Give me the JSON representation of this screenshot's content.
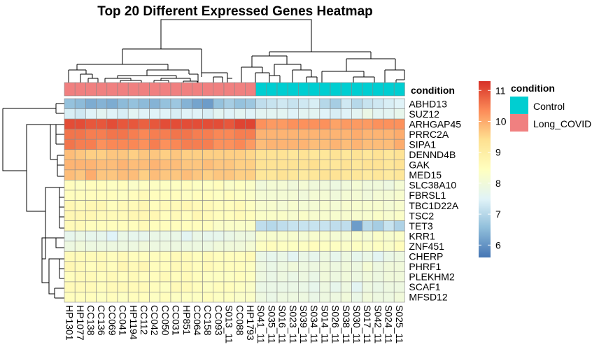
{
  "chart_data": {
    "type": "heatmap",
    "title": "Top 20 Different Expressed Genes Heatmap",
    "rows": [
      "ABHD13",
      "SUZ12",
      "ARHGAP45",
      "PRRC2A",
      "SIPA1",
      "DENND4B",
      "GAK",
      "MED15",
      "SLC38A10",
      "FBRSL1",
      "TBC1D22A",
      "TSC2",
      "TET3",
      "KRR1",
      "ZNF451",
      "CHERP",
      "PHRF1",
      "PLEKHM2",
      "SCAF1",
      "MFSD12"
    ],
    "columns": [
      "HP1301",
      "HP1077",
      "CC138",
      "CC136",
      "CC069",
      "CC041",
      "HP1194",
      "CC112",
      "CC042",
      "CC050",
      "CC031",
      "HP851",
      "CC064",
      "CC158",
      "CC093",
      "S013_11",
      "CC088",
      "HP1793",
      "S041_11",
      "S035_11",
      "S016_11",
      "S023_11",
      "S039_11",
      "S034_11",
      "S014_11",
      "S026_11",
      "S038_11",
      "S030_11",
      "S017_11",
      "S042_11",
      "S024_11",
      "S025_11"
    ],
    "annotation_name": "condition",
    "annotation": [
      "Long_COVID",
      "Long_COVID",
      "Long_COVID",
      "Long_COVID",
      "Long_COVID",
      "Long_COVID",
      "Long_COVID",
      "Long_COVID",
      "Long_COVID",
      "Long_COVID",
      "Long_COVID",
      "Long_COVID",
      "Long_COVID",
      "Long_COVID",
      "Long_COVID",
      "Long_COVID",
      "Long_COVID",
      "Long_COVID",
      "Control",
      "Control",
      "Control",
      "Control",
      "Control",
      "Control",
      "Control",
      "Control",
      "Control",
      "Control",
      "Control",
      "Control",
      "Control",
      "Control"
    ],
    "annotation_colors": {
      "Control": "#00CED1",
      "Long_COVID": "#F08080"
    },
    "legend_title": "condition",
    "legend_entries": [
      "Control",
      "Long_COVID"
    ],
    "colorbar_ticks": [
      6,
      7,
      8,
      9,
      10,
      11
    ],
    "colorbar_range": [
      5.6,
      11.3
    ],
    "colors": [
      "#4575B4",
      "#91BFDB",
      "#E0F3F8",
      "#FFFFBF",
      "#FEE090",
      "#FC8D59",
      "#D73027"
    ],
    "values": [
      [
        6.6,
        6.5,
        6.3,
        6.4,
        6.3,
        6.5,
        6.6,
        6.5,
        6.4,
        6.6,
        6.7,
        6.4,
        6.2,
        6.1,
        6.6,
        6.8,
        6.6,
        6.7,
        7.1,
        7.2,
        7.3,
        7.2,
        7.3,
        7.4,
        7.0,
        6.8,
        7.3,
        7.0,
        7.2,
        7.3,
        7.4,
        7.5
      ],
      [
        7.4,
        7.3,
        7.5,
        7.6,
        7.5,
        7.4,
        7.6,
        7.5,
        7.5,
        7.5,
        7.4,
        7.5,
        7.5,
        7.4,
        7.6,
        7.5,
        7.6,
        7.5,
        7.6,
        7.6,
        7.6,
        7.5,
        7.6,
        7.6,
        7.5,
        7.4,
        7.5,
        7.6,
        7.8,
        7.6,
        7.6,
        7.7
      ],
      [
        11.0,
        11.0,
        10.9,
        10.9,
        11.0,
        10.9,
        10.9,
        10.8,
        10.9,
        11.0,
        11.0,
        11.0,
        11.0,
        11.0,
        11.0,
        10.9,
        11.1,
        11.1,
        10.3,
        10.2,
        10.2,
        10.3,
        10.3,
        10.3,
        10.3,
        10.1,
        10.2,
        10.2,
        10.2,
        10.3,
        10.3,
        10.3
      ],
      [
        10.6,
        10.6,
        10.5,
        10.5,
        10.6,
        10.6,
        10.5,
        10.4,
        10.5,
        10.5,
        10.6,
        10.6,
        10.5,
        10.5,
        10.4,
        10.4,
        10.5,
        10.5,
        9.9,
        9.9,
        9.9,
        9.9,
        9.9,
        9.9,
        9.9,
        9.9,
        9.9,
        10.0,
        9.9,
        9.9,
        9.9,
        10.0
      ],
      [
        10.6,
        10.5,
        10.5,
        10.3,
        10.4,
        10.4,
        10.4,
        10.3,
        10.5,
        10.3,
        10.4,
        10.5,
        10.5,
        10.5,
        10.3,
        10.3,
        10.4,
        10.2,
        9.8,
        9.9,
        9.9,
        9.9,
        9.9,
        9.8,
        9.8,
        9.9,
        9.8,
        9.9,
        9.8,
        9.8,
        9.8,
        10.0
      ],
      [
        9.8,
        9.7,
        9.6,
        9.6,
        9.7,
        9.7,
        9.6,
        9.7,
        9.7,
        9.6,
        9.7,
        9.6,
        9.6,
        9.6,
        9.6,
        9.6,
        9.6,
        9.5,
        9.3,
        9.3,
        9.3,
        9.2,
        9.3,
        9.2,
        9.2,
        9.3,
        9.2,
        9.3,
        9.2,
        9.3,
        9.2,
        9.3
      ],
      [
        9.9,
        9.9,
        9.9,
        9.8,
        9.8,
        9.9,
        9.8,
        9.8,
        9.9,
        9.8,
        9.8,
        9.7,
        9.7,
        9.8,
        9.7,
        9.7,
        9.6,
        9.6,
        9.3,
        9.3,
        9.3,
        9.3,
        9.3,
        9.4,
        9.2,
        9.2,
        9.3,
        9.2,
        9.3,
        9.3,
        9.2,
        9.3
      ],
      [
        9.8,
        9.7,
        10.0,
        9.7,
        9.7,
        9.8,
        9.8,
        9.6,
        9.8,
        9.7,
        9.7,
        9.8,
        9.7,
        9.6,
        9.7,
        9.7,
        9.6,
        9.6,
        9.2,
        9.2,
        9.3,
        9.2,
        9.1,
        9.2,
        9.3,
        9.3,
        9.2,
        9.2,
        9.1,
        9.2,
        9.1,
        9.2
      ],
      [
        8.5,
        8.4,
        8.5,
        8.5,
        8.4,
        8.5,
        8.3,
        8.4,
        8.4,
        8.4,
        8.4,
        8.5,
        8.4,
        8.4,
        8.5,
        8.3,
        8.4,
        8.3,
        8.0,
        8.1,
        8.1,
        8.0,
        8.1,
        8.0,
        8.0,
        7.9,
        8.0,
        8.1,
        8.0,
        8.0,
        7.9,
        8.1
      ],
      [
        8.5,
        8.5,
        8.5,
        8.5,
        8.5,
        8.4,
        8.5,
        8.6,
        8.5,
        8.5,
        8.5,
        8.4,
        8.5,
        8.5,
        8.4,
        8.5,
        8.4,
        8.3,
        8.1,
        8.1,
        8.1,
        8.1,
        8.0,
        8.1,
        8.1,
        8.0,
        8.1,
        8.1,
        8.0,
        8.1,
        8.1,
        8.2
      ],
      [
        8.7,
        8.6,
        8.7,
        8.7,
        8.5,
        8.6,
        8.6,
        8.7,
        8.5,
        8.6,
        8.6,
        8.7,
        8.6,
        8.6,
        8.5,
        8.5,
        8.6,
        8.4,
        8.2,
        8.2,
        8.1,
        8.2,
        8.1,
        8.1,
        8.2,
        8.1,
        8.2,
        8.2,
        8.2,
        8.2,
        8.1,
        8.2
      ],
      [
        8.7,
        8.7,
        8.7,
        8.6,
        8.6,
        8.6,
        8.7,
        8.7,
        8.7,
        8.5,
        8.6,
        8.5,
        8.7,
        8.6,
        8.5,
        8.5,
        8.6,
        8.5,
        8.3,
        8.3,
        8.3,
        8.2,
        8.3,
        8.2,
        8.2,
        8.2,
        8.2,
        8.2,
        8.2,
        8.3,
        8.2,
        8.3
      ],
      [
        8.6,
        8.6,
        8.5,
        8.5,
        8.5,
        8.5,
        8.5,
        8.6,
        8.5,
        8.5,
        8.5,
        8.5,
        8.5,
        8.5,
        8.3,
        8.3,
        8.3,
        8.3,
        7.1,
        7.0,
        7.1,
        7.2,
        7.2,
        7.2,
        7.2,
        7.1,
        7.1,
        6.1,
        7.0,
        6.8,
        7.2,
        6.9
      ],
      [
        7.7,
        7.8,
        7.7,
        7.7,
        7.5,
        7.8,
        7.7,
        7.7,
        7.8,
        7.8,
        7.8,
        7.6,
        7.8,
        7.7,
        7.7,
        7.8,
        7.9,
        7.9,
        8.2,
        8.2,
        8.2,
        8.2,
        8.1,
        8.2,
        8.2,
        8.1,
        8.1,
        8.2,
        8.1,
        8.3,
        8.2,
        8.3
      ],
      [
        7.9,
        8.0,
        7.9,
        7.9,
        7.9,
        7.9,
        7.9,
        8.0,
        7.9,
        7.9,
        7.9,
        7.9,
        7.9,
        7.9,
        8.0,
        8.0,
        8.0,
        8.1,
        8.4,
        8.5,
        8.4,
        8.4,
        8.4,
        8.5,
        8.4,
        8.4,
        8.3,
        8.4,
        8.3,
        8.4,
        8.3,
        8.5
      ],
      [
        8.6,
        8.6,
        8.6,
        8.6,
        8.5,
        8.6,
        8.5,
        8.5,
        8.5,
        8.5,
        8.6,
        8.6,
        8.5,
        8.6,
        8.5,
        8.5,
        8.5,
        8.6,
        7.8,
        7.7,
        7.8,
        7.6,
        7.8,
        7.7,
        7.9,
        7.7,
        7.9,
        7.7,
        7.8,
        7.6,
        7.8,
        7.9
      ],
      [
        8.7,
        8.6,
        8.5,
        8.6,
        8.5,
        8.7,
        8.6,
        8.7,
        8.5,
        8.5,
        8.6,
        8.6,
        8.5,
        8.6,
        8.5,
        8.5,
        8.5,
        8.4,
        7.9,
        7.8,
        7.9,
        8.0,
        7.9,
        7.9,
        8.0,
        7.9,
        8.0,
        7.9,
        8.1,
        7.9,
        8.0,
        8.0
      ],
      [
        8.5,
        8.6,
        8.6,
        8.5,
        8.6,
        8.5,
        8.6,
        8.5,
        8.5,
        8.6,
        8.5,
        8.6,
        8.5,
        8.4,
        8.4,
        8.4,
        8.5,
        8.4,
        7.9,
        7.8,
        7.9,
        7.8,
        7.9,
        7.8,
        8.0,
        7.9,
        8.0,
        7.9,
        8.0,
        7.9,
        8.0,
        8.0
      ],
      [
        8.6,
        8.6,
        8.6,
        8.5,
        8.6,
        8.6,
        8.6,
        8.6,
        8.5,
        8.4,
        8.6,
        8.6,
        8.5,
        8.4,
        8.5,
        8.5,
        8.4,
        8.3,
        7.8,
        7.8,
        7.8,
        7.8,
        7.8,
        7.7,
        7.9,
        7.7,
        7.9,
        7.6,
        7.9,
        7.8,
        7.9,
        7.9
      ],
      [
        8.5,
        8.5,
        8.5,
        8.4,
        8.5,
        8.4,
        8.5,
        8.5,
        8.4,
        8.5,
        8.4,
        8.4,
        8.4,
        8.5,
        8.4,
        8.4,
        8.3,
        8.3,
        7.9,
        7.8,
        7.9,
        7.9,
        7.9,
        7.8,
        7.9,
        7.9,
        8.0,
        7.8,
        8.0,
        7.9,
        7.9,
        8.0
      ]
    ]
  }
}
